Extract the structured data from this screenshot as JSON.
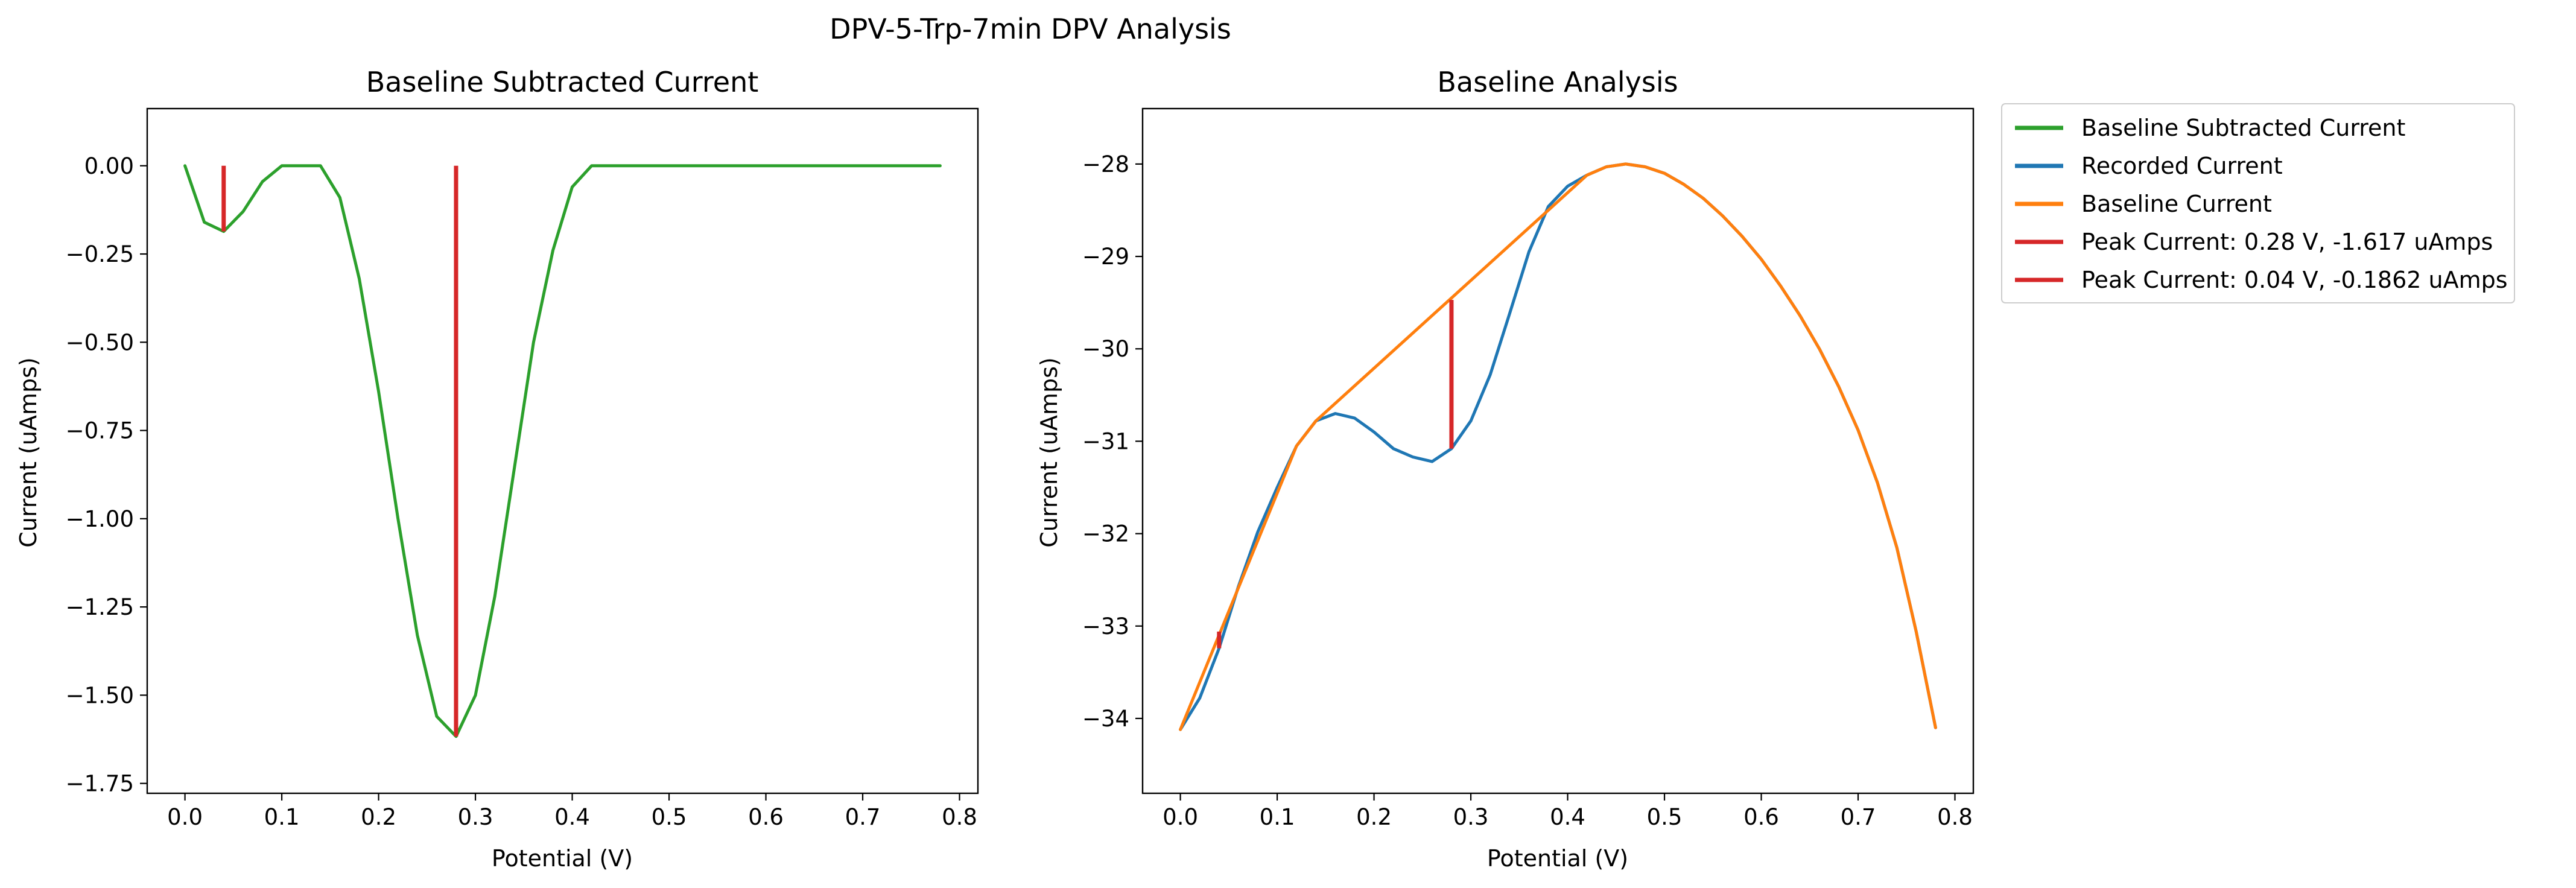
{
  "figure": {
    "title": "DPV-5-Trp-7min DPV Analysis"
  },
  "chart_data": [
    {
      "type": "line",
      "title": "Baseline Subtracted Current",
      "xlabel": "Potential (V)",
      "ylabel": "Current (uAmps)",
      "xlim": [
        -0.039,
        0.819
      ],
      "ylim": [
        -1.778,
        0.162
      ],
      "x_ticks": [
        0.0,
        0.1,
        0.2,
        0.3,
        0.4,
        0.5,
        0.6,
        0.7,
        0.8
      ],
      "x_tick_labels": [
        "0.0",
        "0.1",
        "0.2",
        "0.3",
        "0.4",
        "0.5",
        "0.6",
        "0.7",
        "0.8"
      ],
      "y_ticks": [
        0.0,
        -0.25,
        -0.5,
        -0.75,
        -1.0,
        -1.25,
        -1.5,
        -1.75
      ],
      "y_tick_labels": [
        "0.00",
        "−0.25",
        "−0.50",
        "−0.75",
        "−1.00",
        "−1.25",
        "−1.50",
        "−1.75"
      ],
      "series": [
        {
          "name": "Baseline Subtracted Current",
          "color": "#2ca02c",
          "x": [
            0.0,
            0.02,
            0.04,
            0.06,
            0.08,
            0.1,
            0.12,
            0.14,
            0.16,
            0.18,
            0.2,
            0.22,
            0.24,
            0.26,
            0.28,
            0.3,
            0.32,
            0.34,
            0.36,
            0.38,
            0.4,
            0.42,
            0.44,
            0.46,
            0.48,
            0.5,
            0.52,
            0.54,
            0.56,
            0.58,
            0.6,
            0.62,
            0.64,
            0.66,
            0.68,
            0.7,
            0.72,
            0.74,
            0.76,
            0.78
          ],
          "values": [
            0.0,
            -0.16,
            -0.186,
            -0.13,
            -0.045,
            0.0,
            0.0,
            0.0,
            -0.09,
            -0.32,
            -0.64,
            -1.0,
            -1.33,
            -1.56,
            -1.617,
            -1.5,
            -1.22,
            -0.86,
            -0.5,
            -0.24,
            -0.06,
            0.0,
            0.0,
            0.0,
            0.0,
            0.0,
            0.0,
            0.0,
            0.0,
            0.0,
            0.0,
            0.0,
            0.0,
            0.0,
            0.0,
            0.0,
            0.0,
            0.0,
            0.0,
            0.0
          ]
        }
      ],
      "peaks": [
        {
          "x": 0.04,
          "y_top": 0.0,
          "y_bottom": -0.186,
          "color": "#d62728"
        },
        {
          "x": 0.28,
          "y_top": 0.0,
          "y_bottom": -1.617,
          "color": "#d62728"
        }
      ]
    },
    {
      "type": "line",
      "title": "Baseline Analysis",
      "xlabel": "Potential (V)",
      "ylabel": "Current (uAmps)",
      "xlim": [
        -0.039,
        0.819
      ],
      "ylim": [
        -34.81,
        -27.4
      ],
      "x_ticks": [
        0.0,
        0.1,
        0.2,
        0.3,
        0.4,
        0.5,
        0.6,
        0.7,
        0.8
      ],
      "x_tick_labels": [
        "0.0",
        "0.1",
        "0.2",
        "0.3",
        "0.4",
        "0.5",
        "0.6",
        "0.7",
        "0.8"
      ],
      "y_ticks": [
        -28,
        -29,
        -30,
        -31,
        -32,
        -33,
        -34
      ],
      "y_tick_labels": [
        "−28",
        "−29",
        "−30",
        "−31",
        "−32",
        "−33",
        "−34"
      ],
      "series": [
        {
          "name": "Recorded Current",
          "color": "#1f77b4",
          "x": [
            0.0,
            0.02,
            0.04,
            0.06,
            0.08,
            0.1,
            0.12,
            0.14,
            0.16,
            0.18,
            0.2,
            0.22,
            0.24,
            0.26,
            0.28,
            0.3,
            0.32,
            0.34,
            0.36,
            0.38,
            0.4,
            0.42,
            0.44,
            0.46,
            0.48,
            0.5,
            0.52,
            0.54,
            0.56,
            0.58,
            0.6,
            0.62,
            0.64,
            0.66,
            0.68,
            0.7,
            0.72,
            0.74,
            0.76,
            0.78
          ],
          "values": [
            -34.12,
            -33.78,
            -33.24,
            -32.57,
            -31.98,
            -31.5,
            -31.05,
            -30.78,
            -30.7,
            -30.75,
            -30.9,
            -31.08,
            -31.17,
            -31.22,
            -31.08,
            -30.78,
            -30.28,
            -29.62,
            -28.95,
            -28.46,
            -28.24,
            -28.12,
            -28.03,
            -28.0,
            -28.03,
            -28.1,
            -28.22,
            -28.37,
            -28.56,
            -28.78,
            -29.03,
            -29.32,
            -29.64,
            -30.0,
            -30.41,
            -30.88,
            -31.45,
            -32.15,
            -33.06,
            -34.1
          ]
        },
        {
          "name": "Baseline Current",
          "color": "#ff7f0e",
          "x": [
            0.0,
            0.12,
            0.14,
            0.42,
            0.44,
            0.46,
            0.48,
            0.5,
            0.52,
            0.54,
            0.56,
            0.58,
            0.6,
            0.62,
            0.64,
            0.66,
            0.68,
            0.7,
            0.72,
            0.74,
            0.76,
            0.78
          ],
          "values": [
            -34.12,
            -31.05,
            -30.78,
            -28.12,
            -28.03,
            -28.0,
            -28.03,
            -28.1,
            -28.22,
            -28.37,
            -28.56,
            -28.78,
            -29.03,
            -29.32,
            -29.64,
            -30.0,
            -30.41,
            -30.88,
            -31.45,
            -32.15,
            -33.06,
            -34.1
          ]
        }
      ],
      "peaks": [
        {
          "x": 0.28,
          "y_top": -29.47,
          "y_bottom": -31.08,
          "color": "#d62728"
        },
        {
          "x": 0.04,
          "y_top": -33.06,
          "y_bottom": -33.24,
          "color": "#d62728"
        }
      ]
    }
  ],
  "legend": {
    "placement": "outside-right",
    "entries": [
      {
        "label": "Baseline Subtracted Current",
        "color": "#2ca02c"
      },
      {
        "label": "Recorded Current",
        "color": "#1f77b4"
      },
      {
        "label": "Baseline Current",
        "color": "#ff7f0e"
      },
      {
        "label": "Peak Current: 0.28 V, -1.617 uAmps",
        "color": "#d62728"
      },
      {
        "label": "Peak Current: 0.04 V, -0.1862 uAmps",
        "color": "#d62728"
      }
    ]
  }
}
